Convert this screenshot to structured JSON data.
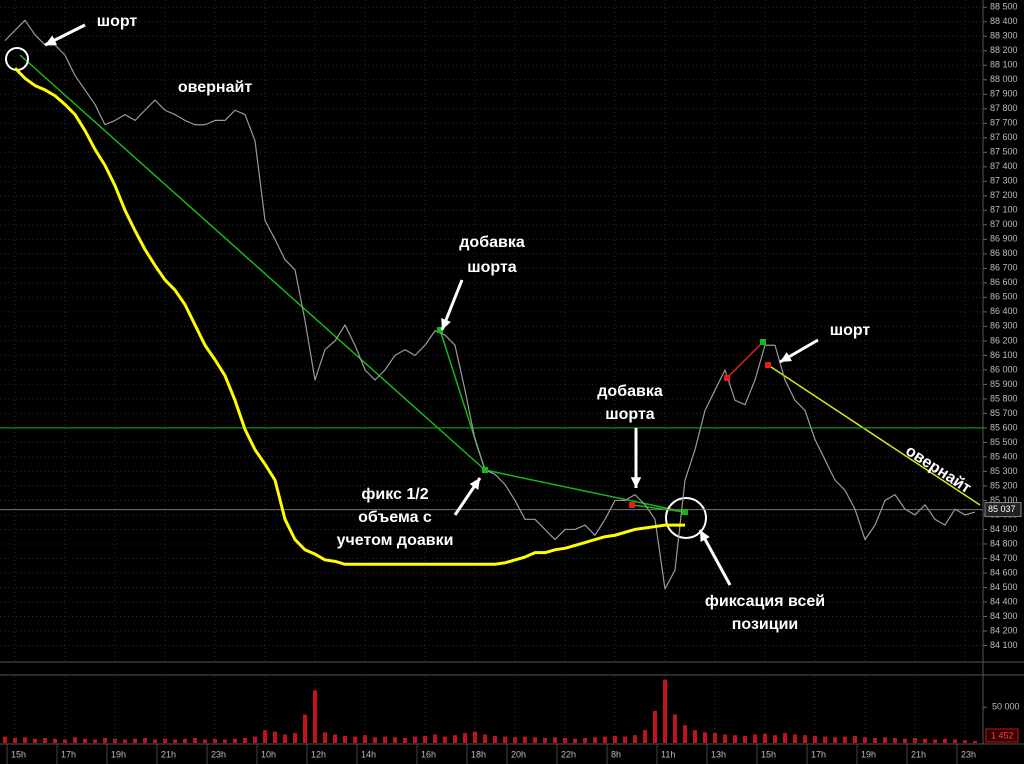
{
  "chart_data": [
    {
      "type": "line",
      "categories": [
        null,
        "15h",
        null,
        null,
        null,
        null,
        "17h",
        null,
        null,
        null,
        null,
        "19h",
        null,
        null,
        null,
        null,
        "21h",
        null,
        null,
        null,
        null,
        "23h",
        null,
        null,
        null,
        null,
        "10h",
        null,
        null,
        null,
        null,
        "12h",
        null,
        null,
        null,
        null,
        "14h",
        null,
        null,
        null,
        null,
        null,
        "16h",
        null,
        null,
        null,
        null,
        "18h",
        null,
        null,
        null,
        "20h",
        null,
        null,
        null,
        null,
        "22h",
        null,
        null,
        null,
        null,
        "8h",
        null,
        null,
        null,
        null,
        "11h",
        null,
        null,
        null,
        null,
        "13h",
        null,
        null,
        null,
        null,
        "15h",
        null,
        null,
        null,
        null,
        "17h",
        null,
        null,
        null,
        null,
        "19h",
        null,
        null,
        null,
        null,
        "21h",
        null,
        null,
        null,
        null,
        "23h",
        null
      ],
      "series": [
        {
          "color": "#9a9a9a",
          "values": [
            88270,
            88340,
            88410,
            88310,
            88240,
            88240,
            88170,
            88030,
            87930,
            87830,
            87690,
            87720,
            87760,
            87720,
            87790,
            87860,
            87790,
            87760,
            87720,
            87690,
            87690,
            87720,
            87720,
            87790,
            87760,
            87580,
            87030,
            86900,
            86760,
            86690,
            86340,
            85930,
            86140,
            86200,
            86310,
            86170,
            86000,
            85930,
            86000,
            86100,
            86140,
            86100,
            86170,
            86270,
            86240,
            86170,
            85860,
            85520,
            85310,
            85280,
            85210,
            85100,
            84970,
            84970,
            84900,
            84830,
            84900,
            84900,
            84930,
            84860,
            84970,
            85100,
            85100,
            85140,
            85070,
            84970,
            84490,
            84620,
            85240,
            85450,
            85720,
            85860,
            86000,
            85790,
            85760,
            85930,
            86170,
            86170,
            85930,
            85790,
            85720,
            85520,
            85380,
            85240,
            85170,
            85040,
            84830,
            84930,
            85100,
            85140,
            85040,
            85000,
            85070,
            84970,
            84930,
            85040,
            85000,
            85020
          ]
        },
        {
          "color": "#ffff00",
          "values": [
            null,
            88080,
            88010,
            87960,
            87930,
            87890,
            87830,
            87760,
            87650,
            87520,
            87410,
            87270,
            87100,
            86960,
            86830,
            86720,
            86620,
            86550,
            86450,
            86310,
            86170,
            86070,
            85960,
            85790,
            85590,
            85450,
            85350,
            85240,
            84970,
            84830,
            84760,
            84730,
            84690,
            84680,
            84660,
            84660,
            84660,
            84660,
            84660,
            84660,
            84660,
            84660,
            84660,
            84660,
            84660,
            84660,
            84660,
            84660,
            84660,
            84660,
            84670,
            84690,
            84710,
            84740,
            84740,
            84760,
            84770,
            84790,
            84810,
            84830,
            84850,
            84860,
            84880,
            84900,
            84910,
            84920,
            84930,
            84930,
            84930,
            null,
            null,
            null,
            null,
            null,
            null,
            null,
            null,
            null,
            null,
            null,
            null,
            null,
            null,
            null,
            null,
            null,
            null,
            null,
            null,
            null,
            null,
            null,
            null,
            null,
            null,
            null,
            null,
            null
          ]
        }
      ],
      "ylim": [
        84000,
        88550
      ],
      "yticks": [
        {
          "value": 84100,
          "label": "84 100"
        },
        {
          "value": 84200,
          "label": "84 200"
        },
        {
          "value": 84300,
          "label": "84 300"
        },
        {
          "value": 84400,
          "label": "84 400"
        },
        {
          "value": 84500,
          "label": "84 500"
        },
        {
          "value": 84600,
          "label": "84 600"
        },
        {
          "value": 84700,
          "label": "84 700"
        },
        {
          "value": 84800,
          "label": "84 800"
        },
        {
          "value": 84900,
          "label": "84 900"
        },
        {
          "value": 85000,
          "label": "85 000"
        },
        {
          "value": 85100,
          "label": "85 100"
        },
        {
          "value": 85200,
          "label": "85 200"
        },
        {
          "value": 85300,
          "label": "85 300"
        },
        {
          "value": 85400,
          "label": "85 400"
        },
        {
          "value": 85500,
          "label": "85 500"
        },
        {
          "value": 85600,
          "label": "85 600"
        },
        {
          "value": 85700,
          "label": "85 700"
        },
        {
          "value": 85800,
          "label": "85 800"
        },
        {
          "value": 85900,
          "label": "85 900"
        },
        {
          "value": 86000,
          "label": "86 000"
        },
        {
          "value": 86100,
          "label": "86 100"
        },
        {
          "value": 86200,
          "label": "86 200"
        },
        {
          "value": 86300,
          "label": "86 300"
        },
        {
          "value": 86400,
          "label": "86 400"
        },
        {
          "value": 86500,
          "label": "86 500"
        },
        {
          "value": 86600,
          "label": "86 600"
        },
        {
          "value": 86700,
          "label": "86 700"
        },
        {
          "value": 86800,
          "label": "86 800"
        },
        {
          "value": 86900,
          "label": "86 900"
        },
        {
          "value": 87000,
          "label": "87 000"
        },
        {
          "value": 87100,
          "label": "87 100"
        },
        {
          "value": 87200,
          "label": "87 200"
        },
        {
          "value": 87300,
          "label": "87 300"
        },
        {
          "value": 87400,
          "label": "87 400"
        },
        {
          "value": 87500,
          "label": "87 500"
        },
        {
          "value": 87600,
          "label": "87 600"
        },
        {
          "value": 87700,
          "label": "87 700"
        },
        {
          "value": 87800,
          "label": "87 800"
        },
        {
          "value": 87900,
          "label": "87 900"
        },
        {
          "value": 88000,
          "label": "88 000"
        },
        {
          "value": 88100,
          "label": "88 100"
        },
        {
          "value": 88200,
          "label": "88 200"
        },
        {
          "value": 88300,
          "label": "88 300"
        },
        {
          "value": 88400,
          "label": "88 400"
        },
        {
          "value": 88500,
          "label": "88 500"
        }
      ],
      "grid": true,
      "level": 85600,
      "current_price": {
        "value": 85037,
        "label": "85 037"
      },
      "annotations": [
        [
          "шорт"
        ],
        [
          "овернайт"
        ],
        [
          "добавка",
          "шорта"
        ],
        [
          "фикс 1/2",
          "объема с",
          "учетом доавки"
        ],
        [
          "добавка",
          "шорта"
        ],
        [
          "фиксация всей",
          "позиции"
        ],
        [
          "шорт"
        ],
        [
          "овернайт"
        ]
      ]
    },
    {
      "type": "bar",
      "color": "#c0141a",
      "values": [
        9000,
        7000,
        8000,
        6000,
        7000,
        6000,
        5000,
        8000,
        6000,
        5000,
        7000,
        6000,
        5000,
        6000,
        7000,
        5000,
        6000,
        5000,
        6000,
        7000,
        5000,
        6000,
        5000,
        6000,
        7000,
        9000,
        18000,
        16000,
        12000,
        14000,
        40000,
        74000,
        15000,
        12000,
        10000,
        9000,
        11000,
        8000,
        9000,
        8000,
        7000,
        9000,
        10000,
        12000,
        9000,
        11000,
        14000,
        16000,
        12000,
        10000,
        9000,
        8000,
        9000,
        8000,
        7000,
        8000,
        7000,
        6000,
        7000,
        8000,
        9000,
        10000,
        9000,
        11000,
        18000,
        45000,
        89000,
        40000,
        25000,
        18000,
        15000,
        14000,
        12000,
        11000,
        10000,
        12000,
        13000,
        11000,
        14000,
        12000,
        11000,
        10000,
        9000,
        8000,
        9000,
        10000,
        8000,
        7000,
        8000,
        7000,
        6000,
        7000,
        6000,
        5000,
        6000,
        5000,
        4000,
        3000
      ],
      "ylim": [
        0,
        94000
      ],
      "yticks": [
        {
          "value": 50000,
          "label": "50 000"
        }
      ],
      "current_value": {
        "value": 1452,
        "label": "1 452"
      }
    }
  ]
}
